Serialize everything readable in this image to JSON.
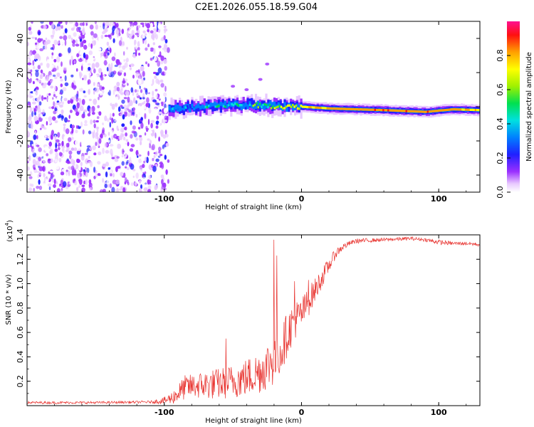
{
  "title": "C2E1.2026.055.18.59.G04",
  "chart_data": [
    {
      "type": "heatmap",
      "xlabel": "Height of straight line (km)",
      "ylabel": "Frequency (Hz)",
      "xlim": [
        -200,
        130
      ],
      "ylim": [
        -50,
        50
      ],
      "x_ticks": [
        -100,
        0,
        100
      ],
      "x_tick_labels": [
        "-100",
        "0",
        "100"
      ],
      "y_ticks": [
        -40,
        -20,
        0,
        20,
        40
      ],
      "y_tick_labels": [
        "-40",
        "-20",
        "0",
        "20",
        "40"
      ],
      "colorbar": {
        "label": "Normalized spectral amplitude",
        "range": [
          0,
          1
        ],
        "ticks": [
          0,
          0.2,
          0.4,
          0.6,
          0.8
        ],
        "tick_labels": [
          "0.0",
          "0.2",
          "0.4",
          "0.6",
          "0.8"
        ]
      },
      "noise_region_km": [
        -200,
        -97
      ],
      "ridge": [
        {
          "x": -97,
          "f": -1.5,
          "amp": 0.35
        },
        {
          "x": -85,
          "f": -1.0,
          "amp": 0.4
        },
        {
          "x": -70,
          "f": 0.0,
          "amp": 0.45
        },
        {
          "x": -55,
          "f": 1.0,
          "amp": 0.45
        },
        {
          "x": -40,
          "f": 1.0,
          "amp": 0.5
        },
        {
          "x": -25,
          "f": 0.5,
          "amp": 0.6
        },
        {
          "x": -10,
          "f": 0.0,
          "amp": 0.75
        },
        {
          "x": 0,
          "f": 0.0,
          "amp": 0.8
        },
        {
          "x": 20,
          "f": -1.0,
          "amp": 0.85
        },
        {
          "x": 60,
          "f": -2.0,
          "amp": 0.9
        },
        {
          "x": 90,
          "f": -3.0,
          "amp": 0.9
        },
        {
          "x": 110,
          "f": -1.5,
          "amp": 0.85
        },
        {
          "x": 130,
          "f": -2.0,
          "amp": 0.8
        }
      ]
    },
    {
      "type": "line",
      "xlabel": "Height of straight line (km)",
      "ylabel": "SNR (10 * v/v)",
      "scale_label": "(x10",
      "scale_exponent": "4",
      "xlim": [
        -200,
        130
      ],
      "ylim": [
        0,
        1.4
      ],
      "x_ticks": [
        -100,
        0,
        100
      ],
      "x_tick_labels": [
        "-100",
        "0",
        "100"
      ],
      "y_ticks": [
        0.2,
        0.4,
        0.6,
        0.8,
        1.0,
        1.2,
        1.4
      ],
      "y_tick_labels": [
        "0.2",
        "0.4",
        "0.6",
        "0.8",
        "1.0",
        "1.2",
        "1.4"
      ],
      "series": [
        {
          "name": "SNR",
          "color": "#e8322e",
          "x": [
            -200,
            -150,
            -110,
            -100,
            -95,
            -90,
            -85,
            -80,
            -70,
            -60,
            -50,
            -40,
            -30,
            -25,
            -20,
            -15,
            -10,
            -5,
            0,
            5,
            10,
            15,
            20,
            25,
            30,
            35,
            40,
            60,
            80,
            90,
            100,
            110,
            120,
            130
          ],
          "y": [
            0.025,
            0.025,
            0.03,
            0.04,
            0.06,
            0.1,
            0.15,
            0.16,
            0.17,
            0.18,
            0.2,
            0.23,
            0.28,
            0.33,
            0.38,
            0.45,
            0.6,
            0.7,
            0.75,
            0.85,
            0.95,
            1.05,
            1.15,
            1.25,
            1.3,
            1.33,
            1.35,
            1.36,
            1.37,
            1.36,
            1.34,
            1.33,
            1.33,
            1.32
          ],
          "noise": [
            0.01,
            0.01,
            0.01,
            0.03,
            0.05,
            0.08,
            0.1,
            0.1,
            0.12,
            0.13,
            0.14,
            0.16,
            0.18,
            0.2,
            0.22,
            0.2,
            0.18,
            0.16,
            0.14,
            0.12,
            0.1,
            0.08,
            0.06,
            0.04,
            0.03,
            0.02,
            0.02,
            0.015,
            0.015,
            0.015,
            0.02,
            0.015,
            0.015,
            0.015
          ],
          "spikes": [
            {
              "x": -20,
              "y": 1.36
            },
            {
              "x": -18,
              "y": 1.23
            },
            {
              "x": -5,
              "y": 1.02
            },
            {
              "x": -55,
              "y": 0.55
            },
            {
              "x": 5,
              "y": 1.03
            }
          ]
        }
      ]
    }
  ]
}
